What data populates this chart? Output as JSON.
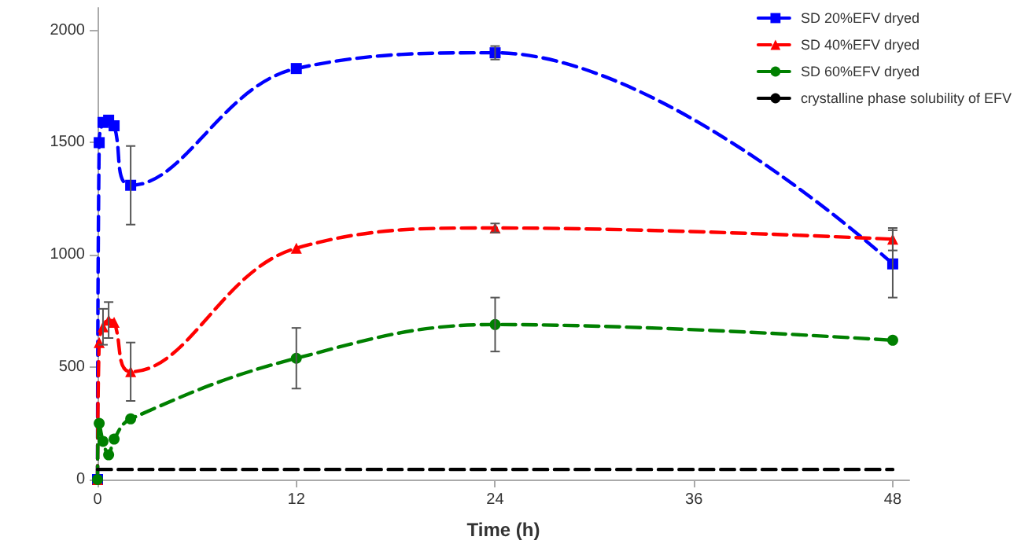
{
  "chart_data": {
    "type": "line",
    "xlabel": "Time (h)",
    "xlim": [
      0,
      49
    ],
    "xticks": [
      0,
      12,
      24,
      36,
      48
    ],
    "ylim": [
      0,
      2100
    ],
    "yticks": [
      0,
      500,
      1000,
      1500,
      2000
    ],
    "grid": false,
    "legend": "top right",
    "line_style": "dashed",
    "x": [
      0,
      0.1,
      0.33,
      0.67,
      1,
      2,
      12,
      24,
      48
    ],
    "series": [
      {
        "name": "SD 20%EFV dryed",
        "color": "#0000ff",
        "marker": "square",
        "values": [
          0,
          1500,
          1590,
          1600,
          1575,
          1310,
          1830,
          1900,
          960
        ],
        "errors": [
          null,
          null,
          null,
          null,
          null,
          175,
          null,
          30,
          150
        ]
      },
      {
        "name": "SD 40%EFV dryed",
        "color": "#ff0000",
        "marker": "triangle",
        "values": [
          0,
          610,
          680,
          710,
          700,
          480,
          1030,
          1120,
          1070
        ],
        "errors": [
          null,
          null,
          80,
          80,
          null,
          130,
          null,
          20,
          50
        ]
      },
      {
        "name": "SD 60%EFV dryed",
        "color": "#008000",
        "marker": "circle",
        "values": [
          0,
          250,
          170,
          110,
          180,
          270,
          540,
          690,
          620
        ],
        "errors": [
          null,
          null,
          null,
          null,
          null,
          null,
          135,
          120,
          null
        ]
      },
      {
        "name": "crystalline phase solubility of EFV",
        "color": "#000000",
        "marker": "none",
        "x": [
          0,
          48
        ],
        "values": [
          45,
          45
        ]
      }
    ]
  }
}
